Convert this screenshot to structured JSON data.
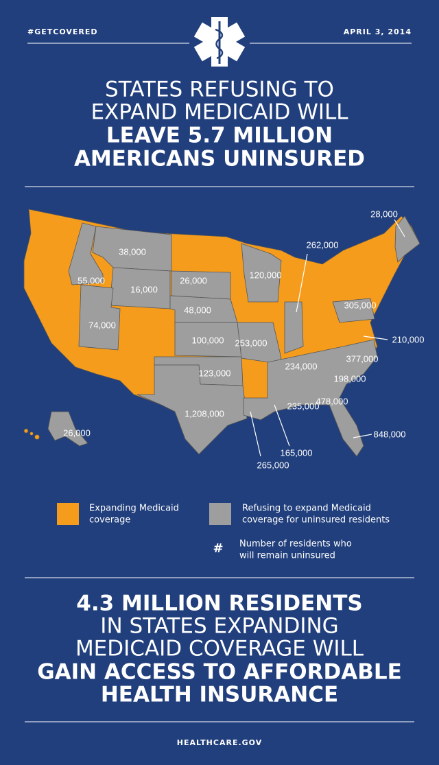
{
  "header": {
    "hashtag": "#GETCOVERED",
    "date": "APRIL 3, 2014"
  },
  "title": {
    "lines": [
      "STATES REFUSING TO",
      "EXPAND MEDICAID WILL",
      "LEAVE 5.7 MILLION",
      "AMERICANS UNINSURED"
    ]
  },
  "map": {
    "labels": [
      "28,000",
      "38,000",
      "262,000",
      "55,000",
      "16,000",
      "26,000",
      "120,000",
      "305,000",
      "48,000",
      "74,000",
      "100,000",
      "253,000",
      "210,000",
      "377,000",
      "234,000",
      "123,000",
      "198,000",
      "235,000",
      "478,000",
      "1,208,000",
      "26,000",
      "848,000",
      "165,000",
      "265,000"
    ]
  },
  "legend": {
    "expanding": [
      "Expanding Medicaid",
      "coverage"
    ],
    "refusing": [
      "Refusing to expand Medicaid",
      "coverage for uninsured residents"
    ],
    "number_symbol": "#",
    "number_note": [
      "Number of residents who",
      "will remain uninsured"
    ]
  },
  "conclusion": {
    "lines": [
      "4.3 MILLION RESIDENTS",
      "IN STATES EXPANDING",
      "MEDICAID COVERAGE WILL",
      "GAIN ACCESS TO AFFORDABLE",
      "HEALTH INSURANCE"
    ]
  },
  "footer": {
    "site": "HEALTHCARE.GOV"
  }
}
